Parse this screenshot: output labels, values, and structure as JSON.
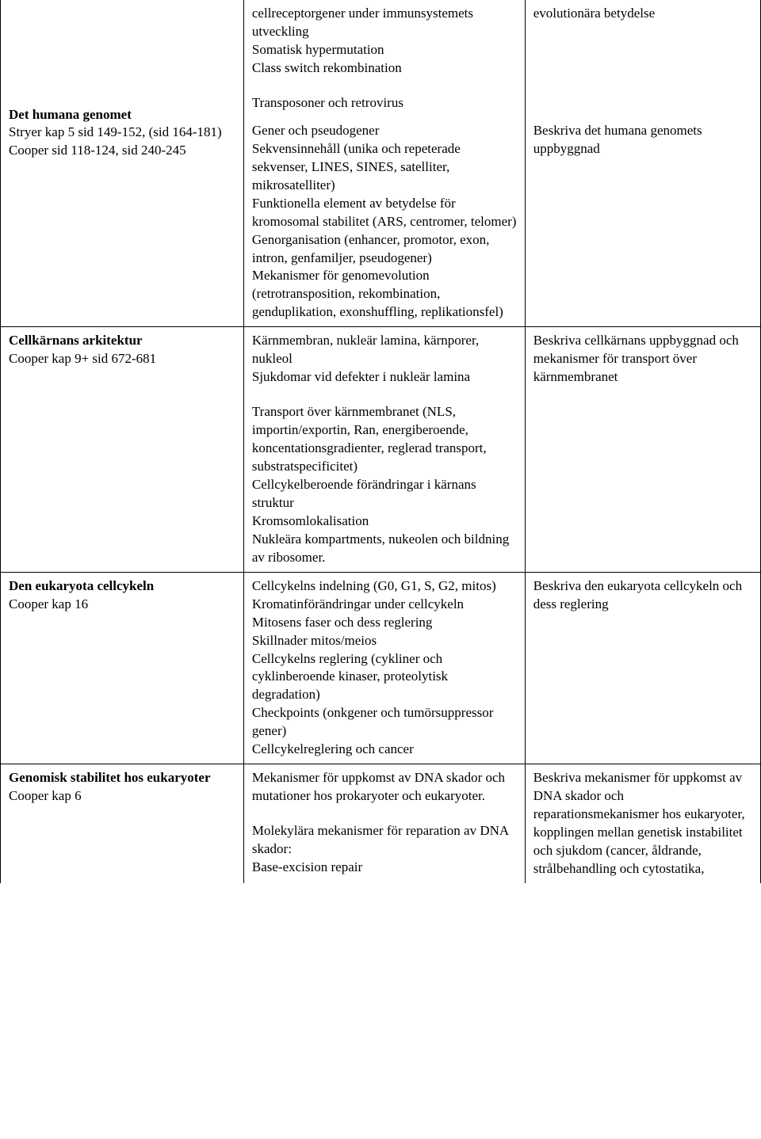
{
  "rows": [
    {
      "c1": {
        "title": "Det humana genomet",
        "refs": [
          "Stryer kap 5 sid 149-152, (sid 164-181)",
          "Cooper sid 118-124, sid 240-245"
        ]
      },
      "c2": {
        "prelude": [
          "cellreceptorgener under immunsystemets utveckling",
          "Somatisk hypermutation",
          "Class switch rekombination"
        ],
        "prelude_gap": "Transposoner och retrovirus",
        "main": [
          "Gener och pseudogener",
          "Sekvensinnehåll (unika och repeterade sekvenser, LINES, SINES, satelliter, mikrosatelliter)",
          "Funktionella element av betydelse för kromosomal stabilitet (ARS, centromer, telomer)",
          "Genorganisation (enhancer, promotor, exon, intron, genfamiljer, pseudogener)",
          "Mekanismer för genomevolution (retrotransposition, rekombination, genduplikation, exonshuffling, replikationsfel)"
        ]
      },
      "c3": {
        "prelude": "evolutionära betydelse",
        "main": "Beskriva det humana genomets uppbyggnad"
      }
    },
    {
      "c1": {
        "title": "Cellkärnans arkitektur",
        "refs": [
          "Cooper kap 9+ sid 672-681"
        ]
      },
      "c2": {
        "main": [
          "Kärnmembran, nukleär lamina, kärnporer, nukleol",
          "Sjukdomar vid defekter i nukleär lamina"
        ],
        "gap_after_main": true,
        "main2": [
          "Transport över kärnmembranet (NLS, importin/exportin, Ran, energiberoende, koncentationsgradienter, reglerad transport, substratspecificitet)",
          "Cellcykelberoende förändringar i kärnans struktur",
          "Kromsomlokalisation",
          "Nukleära kompartments, nukeolen och bildning av ribosomer."
        ]
      },
      "c3": {
        "main": "Beskriva cellkärnans uppbyggnad och mekanismer för transport över kärnmembranet"
      }
    },
    {
      "c1": {
        "title": "Den eukaryota cellcykeln",
        "refs": [
          "Cooper kap 16"
        ]
      },
      "c2": {
        "main": [
          "Cellcykelns indelning (G0, G1, S, G2, mitos)",
          "Kromatinförändringar under cellcykeln",
          "Mitosens faser och dess reglering",
          "Skillnader mitos/meios",
          "Cellcykelns reglering (cykliner och cyklinberoende kinaser, proteolytisk degradation)",
          "Checkpoints (onkgener och tumörsuppressor gener)",
          "Cellcykelreglering och cancer"
        ]
      },
      "c3": {
        "main": "Beskriva den eukaryota cellcykeln och dess reglering"
      }
    },
    {
      "c1": {
        "title": "Genomisk stabilitet hos eukaryoter",
        "refs": [
          "Cooper kap 6"
        ]
      },
      "c2": {
        "main": [
          "Mekanismer för uppkomst av DNA skador och mutationer hos prokaryoter och eukaryoter."
        ],
        "gap_after_main": true,
        "main2": [
          "Molekylära mekanismer för reparation av DNA skador:",
          "Base-excision repair"
        ]
      },
      "c3": {
        "main": "Beskriva mekanismer för uppkomst av DNA skador och reparationsmekanismer hos eukaryoter, kopplingen mellan genetisk instabilitet och sjukdom (cancer, åldrande, strålbehandling och cytostatika,"
      }
    }
  ]
}
